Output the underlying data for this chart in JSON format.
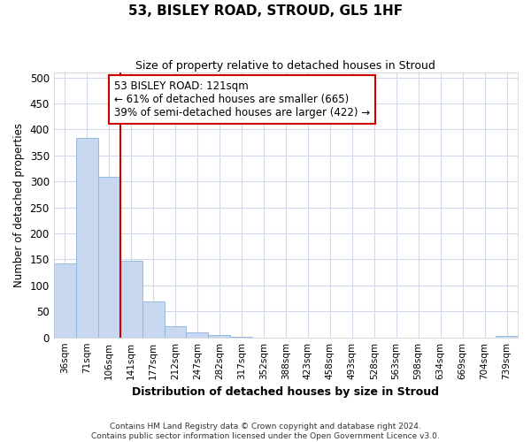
{
  "title": "53, BISLEY ROAD, STROUD, GL5 1HF",
  "subtitle": "Size of property relative to detached houses in Stroud",
  "xlabel": "Distribution of detached houses by size in Stroud",
  "ylabel": "Number of detached properties",
  "bar_color": "#c8d8f0",
  "bar_edge_color": "#8ab4dc",
  "background_color": "#ffffff",
  "fig_background_color": "#ffffff",
  "grid_color": "#d0daea",
  "bin_labels": [
    "36sqm",
    "71sqm",
    "106sqm",
    "141sqm",
    "177sqm",
    "212sqm",
    "247sqm",
    "282sqm",
    "317sqm",
    "352sqm",
    "388sqm",
    "423sqm",
    "458sqm",
    "493sqm",
    "528sqm",
    "563sqm",
    "598sqm",
    "634sqm",
    "669sqm",
    "704sqm",
    "739sqm"
  ],
  "bar_values": [
    143,
    383,
    308,
    148,
    69,
    22,
    10,
    5,
    2,
    0,
    0,
    0,
    0,
    0,
    0,
    0,
    0,
    0,
    0,
    0,
    3
  ],
  "ylim": [
    0,
    510
  ],
  "yticks": [
    0,
    50,
    100,
    150,
    200,
    250,
    300,
    350,
    400,
    450,
    500
  ],
  "property_line_x": 2.5,
  "annotation_text": "53 BISLEY ROAD: 121sqm\n← 61% of detached houses are smaller (665)\n39% of semi-detached houses are larger (422) →",
  "annotation_box_color": "#ffffff",
  "annotation_edge_color": "#cc0000",
  "vline_color": "#cc0000",
  "footnote_line1": "Contains HM Land Registry data © Crown copyright and database right 2024.",
  "footnote_line2": "Contains public sector information licensed under the Open Government Licence v3.0."
}
